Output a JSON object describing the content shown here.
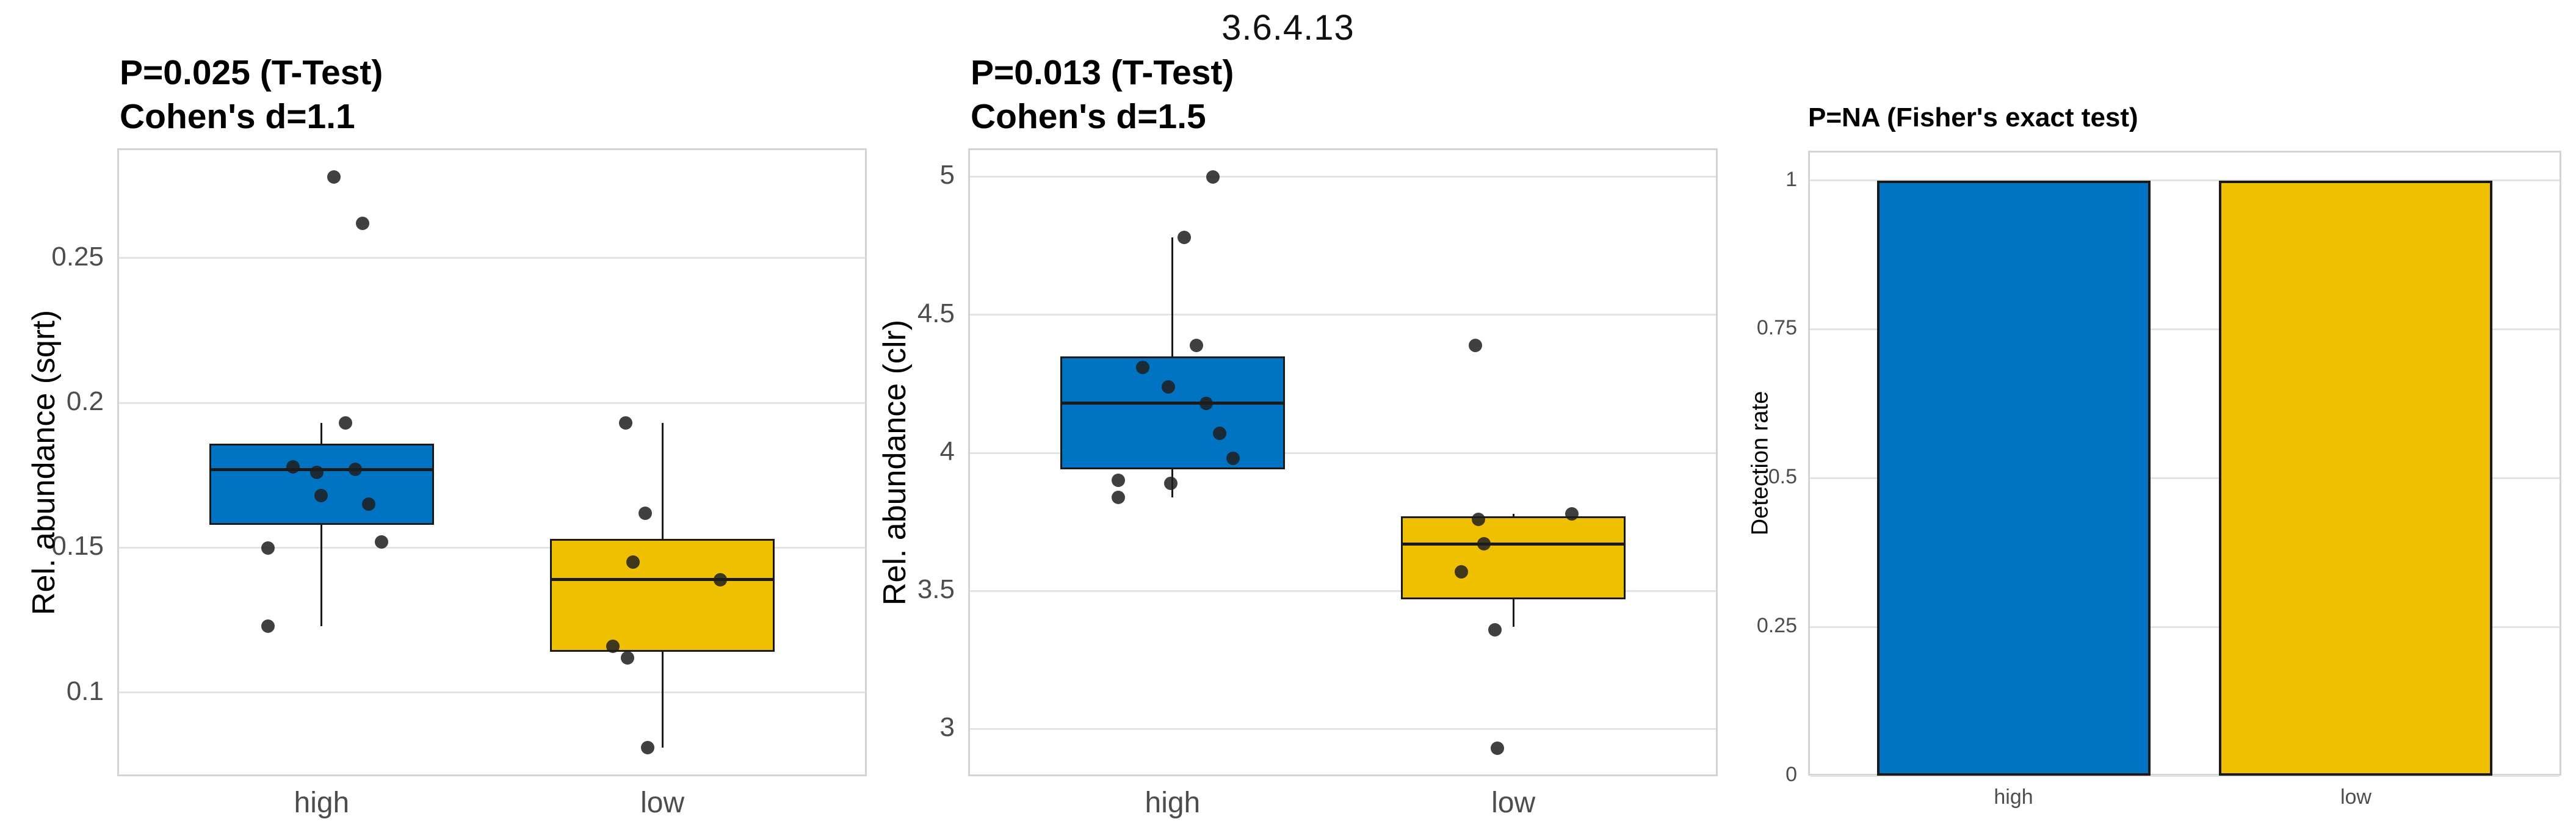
{
  "figure": {
    "title": "3.6.4.13",
    "background": "#FFFFFF"
  },
  "colors": {
    "group_high": "#0073C2",
    "group_low": "#EFC000",
    "gridline": "#E3E3E3",
    "panel_border": "#D4D4D4",
    "axis_text": "#4D4D4D",
    "box_border": "#1A1A1A",
    "jitter_point": "#333333"
  },
  "chart_data": [
    {
      "type": "boxplot",
      "title": "P=0.025 (T-Test) Cohen's d=1.1",
      "subtitle_lines": [
        "P=0.025 (T-Test)",
        "Cohen's d=1.1"
      ],
      "ylabel": "Rel. abundance (sqrt)",
      "xlabel": "",
      "categories": [
        "high",
        "low"
      ],
      "ylim": [
        0.0711,
        0.2879
      ],
      "yticks": [
        0.25,
        0.2,
        0.15,
        0.1
      ],
      "ytick_labels": [
        "0.25",
        "0.2",
        "0.15",
        "0.1"
      ],
      "grid": true,
      "legend": "none",
      "series": [
        {
          "name": "high",
          "color_key": "group_high",
          "q1": 0.158,
          "median": 0.177,
          "q3": 0.186,
          "whisker_low": 0.123,
          "whisker_high": 0.193,
          "points": [
            {
              "value": 0.278,
              "dx": 20
            },
            {
              "value": 0.262,
              "dx": 67
            },
            {
              "value": 0.193,
              "dx": 39
            },
            {
              "value": 0.178,
              "dx": -47
            },
            {
              "value": 0.177,
              "dx": 55
            },
            {
              "value": 0.176,
              "dx": -8
            },
            {
              "value": 0.168,
              "dx": -1
            },
            {
              "value": 0.165,
              "dx": 77
            },
            {
              "value": 0.152,
              "dx": 98
            },
            {
              "value": 0.15,
              "dx": -88
            },
            {
              "value": 0.123,
              "dx": -88
            }
          ]
        },
        {
          "name": "low",
          "color_key": "group_low",
          "q1": 0.114,
          "median": 0.139,
          "q3": 0.153,
          "whisker_low": 0.081,
          "whisker_high": 0.193,
          "points": [
            {
              "value": 0.193,
              "dx": -60
            },
            {
              "value": 0.162,
              "dx": -28
            },
            {
              "value": 0.145,
              "dx": -48
            },
            {
              "value": 0.139,
              "dx": 95
            },
            {
              "value": 0.116,
              "dx": -81
            },
            {
              "value": 0.112,
              "dx": -57
            },
            {
              "value": 0.081,
              "dx": -24
            }
          ]
        }
      ]
    },
    {
      "type": "boxplot",
      "title": "P=0.013 (T-Test) Cohen's d=1.5",
      "subtitle_lines": [
        "P=0.013 (T-Test)",
        "Cohen's d=1.5"
      ],
      "ylabel": "Rel. abundance (clr)",
      "xlabel": "",
      "categories": [
        "high",
        "low"
      ],
      "ylim": [
        2.829,
        5.103
      ],
      "yticks": [
        5,
        4.5,
        4,
        3.5,
        3
      ],
      "ytick_labels": [
        "5",
        "4.5",
        "4",
        "3.5",
        "3"
      ],
      "grid": true,
      "legend": "none",
      "series": [
        {
          "name": "high",
          "color_key": "group_high",
          "q1": 3.94,
          "median": 4.18,
          "q3": 4.35,
          "whisker_low": 3.84,
          "whisker_high": 4.78,
          "points": [
            {
              "value": 5.0,
              "dx": 66
            },
            {
              "value": 4.78,
              "dx": 19
            },
            {
              "value": 4.39,
              "dx": 39
            },
            {
              "value": 4.31,
              "dx": -49
            },
            {
              "value": 4.24,
              "dx": -7
            },
            {
              "value": 4.18,
              "dx": 55
            },
            {
              "value": 4.07,
              "dx": 77
            },
            {
              "value": 3.98,
              "dx": 99
            },
            {
              "value": 3.9,
              "dx": -89
            },
            {
              "value": 3.89,
              "dx": -3
            },
            {
              "value": 3.84,
              "dx": -89
            }
          ]
        },
        {
          "name": "low",
          "color_key": "group_low",
          "q1": 3.47,
          "median": 3.67,
          "q3": 3.77,
          "whisker_low": 3.37,
          "whisker_high": 3.78,
          "points": [
            {
              "value": 4.39,
              "dx": -62
            },
            {
              "value": 3.78,
              "dx": 96
            },
            {
              "value": 3.76,
              "dx": -57
            },
            {
              "value": 3.67,
              "dx": -48
            },
            {
              "value": 3.57,
              "dx": -85
            },
            {
              "value": 3.36,
              "dx": -30
            },
            {
              "value": 2.93,
              "dx": -26
            }
          ]
        }
      ]
    },
    {
      "type": "bar",
      "title": "P=NA (Fisher's exact test)",
      "subtitle_lines": [
        "P=NA (Fisher's exact test)"
      ],
      "ylabel": "Detection rate",
      "xlabel": "",
      "categories": [
        "high",
        "low"
      ],
      "values": [
        1,
        1
      ],
      "color_keys": [
        "group_high",
        "group_low"
      ],
      "ylim": [
        0,
        1.05
      ],
      "yticks": [
        1,
        0.75,
        0.5,
        0.25,
        0
      ],
      "ytick_labels": [
        "1",
        "0.75",
        "0.5",
        "0.25",
        "0"
      ],
      "grid": true,
      "legend": "none"
    }
  ]
}
